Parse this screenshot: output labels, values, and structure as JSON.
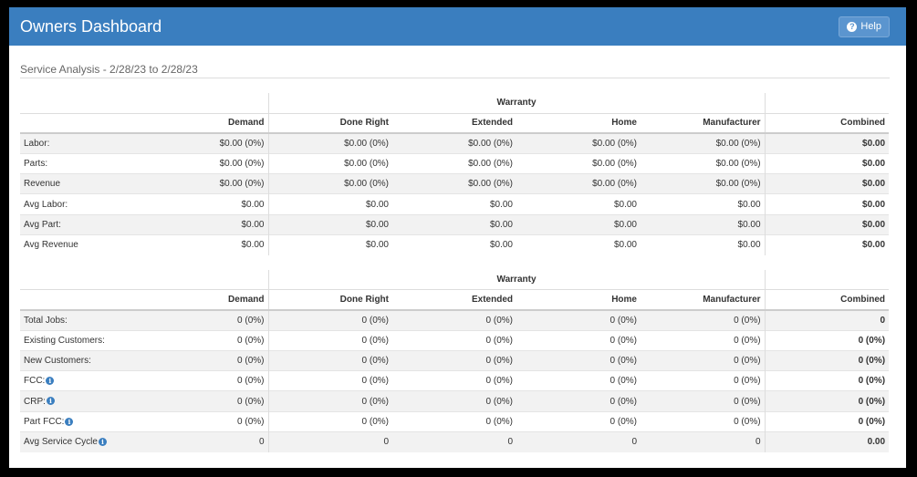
{
  "header": {
    "title": "Owners Dashboard",
    "help_label": "Help",
    "help_icon": "question-circle-icon"
  },
  "section": {
    "title": "Service Analysis - 2/28/23 to 2/28/23"
  },
  "colors": {
    "header": "#3a7ebf",
    "stripe": "#f2f2f2"
  },
  "table1": {
    "group_label": "Warranty",
    "columns": [
      "Demand",
      "Done Right",
      "Extended",
      "Home",
      "Manufacturer",
      "Combined"
    ],
    "rows": [
      {
        "label": "Labor:",
        "cells": [
          "$0.00 (0%)",
          "$0.00 (0%)",
          "$0.00 (0%)",
          "$0.00 (0%)",
          "$0.00 (0%)",
          "$0.00"
        ]
      },
      {
        "label": "Parts:",
        "cells": [
          "$0.00 (0%)",
          "$0.00 (0%)",
          "$0.00 (0%)",
          "$0.00 (0%)",
          "$0.00 (0%)",
          "$0.00"
        ]
      },
      {
        "label": "Revenue",
        "cells": [
          "$0.00 (0%)",
          "$0.00 (0%)",
          "$0.00 (0%)",
          "$0.00 (0%)",
          "$0.00 (0%)",
          "$0.00"
        ]
      },
      {
        "label": "Avg Labor:",
        "cells": [
          "$0.00",
          "$0.00",
          "$0.00",
          "$0.00",
          "$0.00",
          "$0.00"
        ]
      },
      {
        "label": "Avg Part:",
        "cells": [
          "$0.00",
          "$0.00",
          "$0.00",
          "$0.00",
          "$0.00",
          "$0.00"
        ]
      },
      {
        "label": "Avg Revenue",
        "cells": [
          "$0.00",
          "$0.00",
          "$0.00",
          "$0.00",
          "$0.00",
          "$0.00"
        ]
      }
    ]
  },
  "table2": {
    "group_label": "Warranty",
    "columns": [
      "Demand",
      "Done Right",
      "Extended",
      "Home",
      "Manufacturer",
      "Combined"
    ],
    "rows": [
      {
        "label": "Total Jobs:",
        "info": false,
        "cells": [
          "0 (0%)",
          "0 (0%)",
          "0 (0%)",
          "0 (0%)",
          "0 (0%)",
          "0"
        ]
      },
      {
        "label": "Existing Customers:",
        "info": false,
        "cells": [
          "0 (0%)",
          "0 (0%)",
          "0 (0%)",
          "0 (0%)",
          "0 (0%)",
          "0 (0%)"
        ]
      },
      {
        "label": "New Customers:",
        "info": false,
        "cells": [
          "0 (0%)",
          "0 (0%)",
          "0 (0%)",
          "0 (0%)",
          "0 (0%)",
          "0 (0%)"
        ]
      },
      {
        "label": "FCC:",
        "info": true,
        "cells": [
          "0 (0%)",
          "0 (0%)",
          "0 (0%)",
          "0 (0%)",
          "0 (0%)",
          "0 (0%)"
        ]
      },
      {
        "label": "CRP:",
        "info": true,
        "cells": [
          "0 (0%)",
          "0 (0%)",
          "0 (0%)",
          "0 (0%)",
          "0 (0%)",
          "0 (0%)"
        ]
      },
      {
        "label": "Part FCC:",
        "info": true,
        "cells": [
          "0 (0%)",
          "0 (0%)",
          "0 (0%)",
          "0 (0%)",
          "0 (0%)",
          "0 (0%)"
        ]
      },
      {
        "label": "Avg Service Cycle",
        "info": true,
        "cells": [
          "0",
          "0",
          "0",
          "0",
          "0",
          "0.00"
        ]
      }
    ]
  }
}
